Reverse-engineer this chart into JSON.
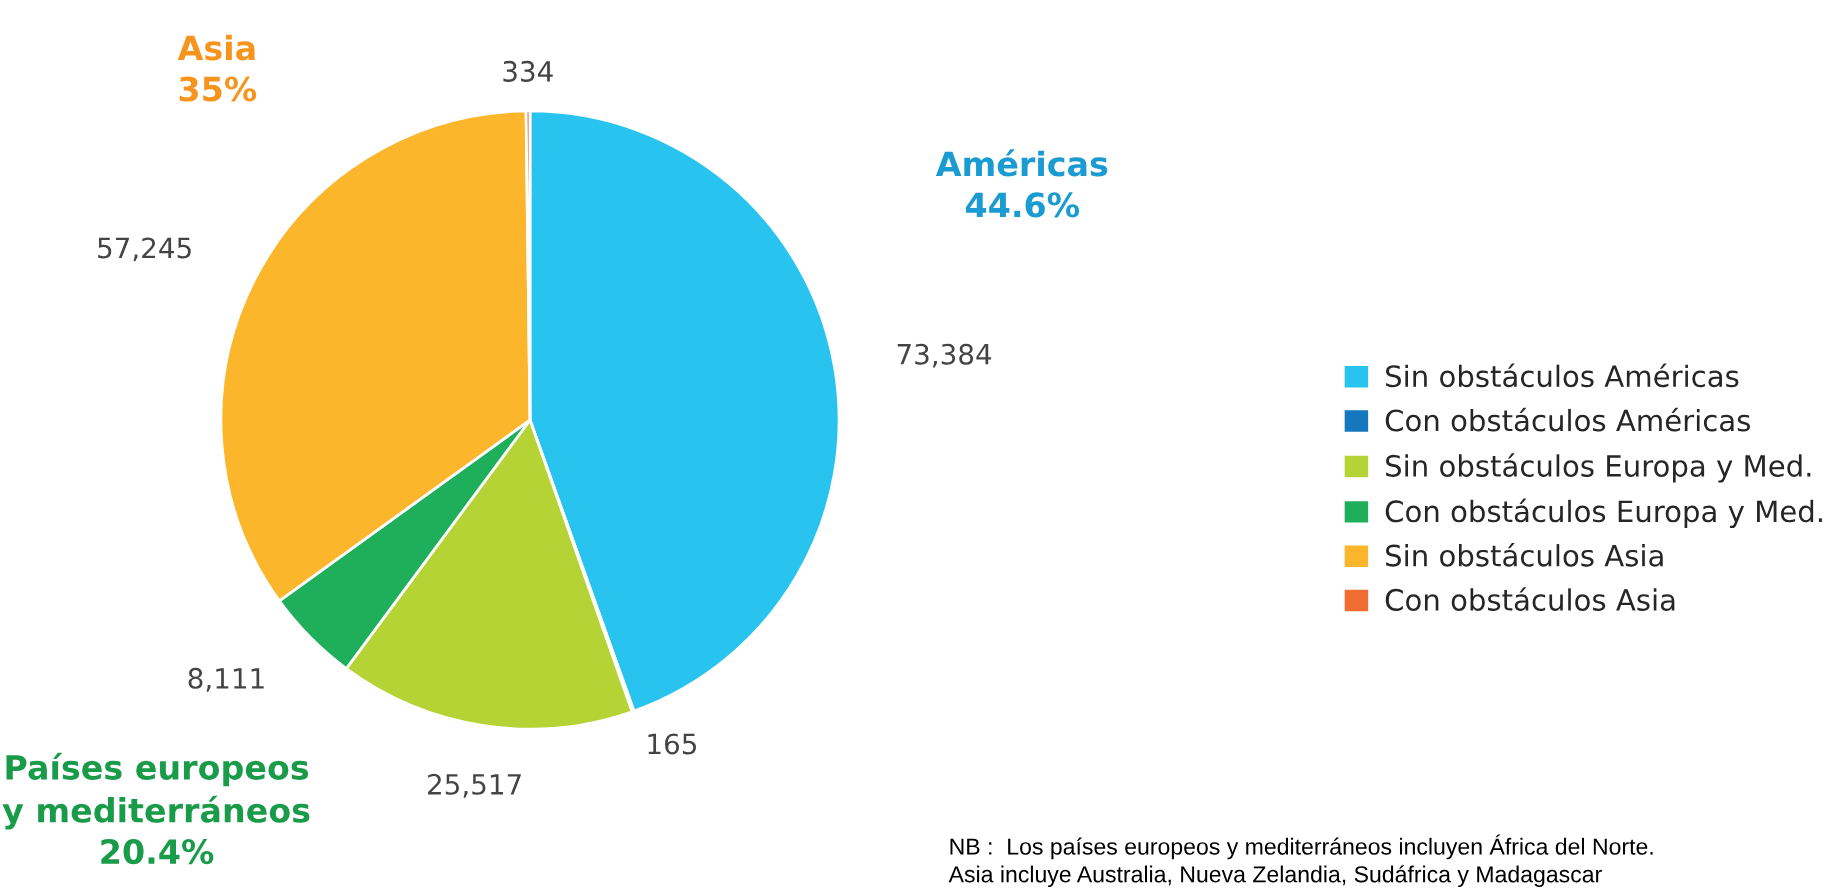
{
  "chart_data": {
    "type": "pie",
    "categories": [
      "Sin obstáculos Américas",
      "Con obstáculos Américas",
      "Sin obstáculos Europa y Med.",
      "Con obstáculos Europa y Med.",
      "Sin obstáculos Asia",
      "Con obstáculos Asia"
    ],
    "values": [
      73384,
      165,
      25517,
      8111,
      57245,
      334
    ],
    "value_labels": [
      "73,384",
      "165",
      "25,517",
      "8,111",
      "57,245",
      "334"
    ],
    "colors": [
      "#29c3f0",
      "#1577bd",
      "#b5d334",
      "#1fae5a",
      "#fbb62c",
      "#ef6c32"
    ],
    "legend": "right",
    "annotations": [
      "Américas\n44.6%",
      "Países europeos\ny mediterráneos\n20.4%",
      "Asia\n35%",
      "NB :  Los países europeos y mediterráneos incluyen África del Norte.\nAsia incluye Australia, Nueva Zelandia, Sudáfrica y Madagascar"
    ]
  }
}
